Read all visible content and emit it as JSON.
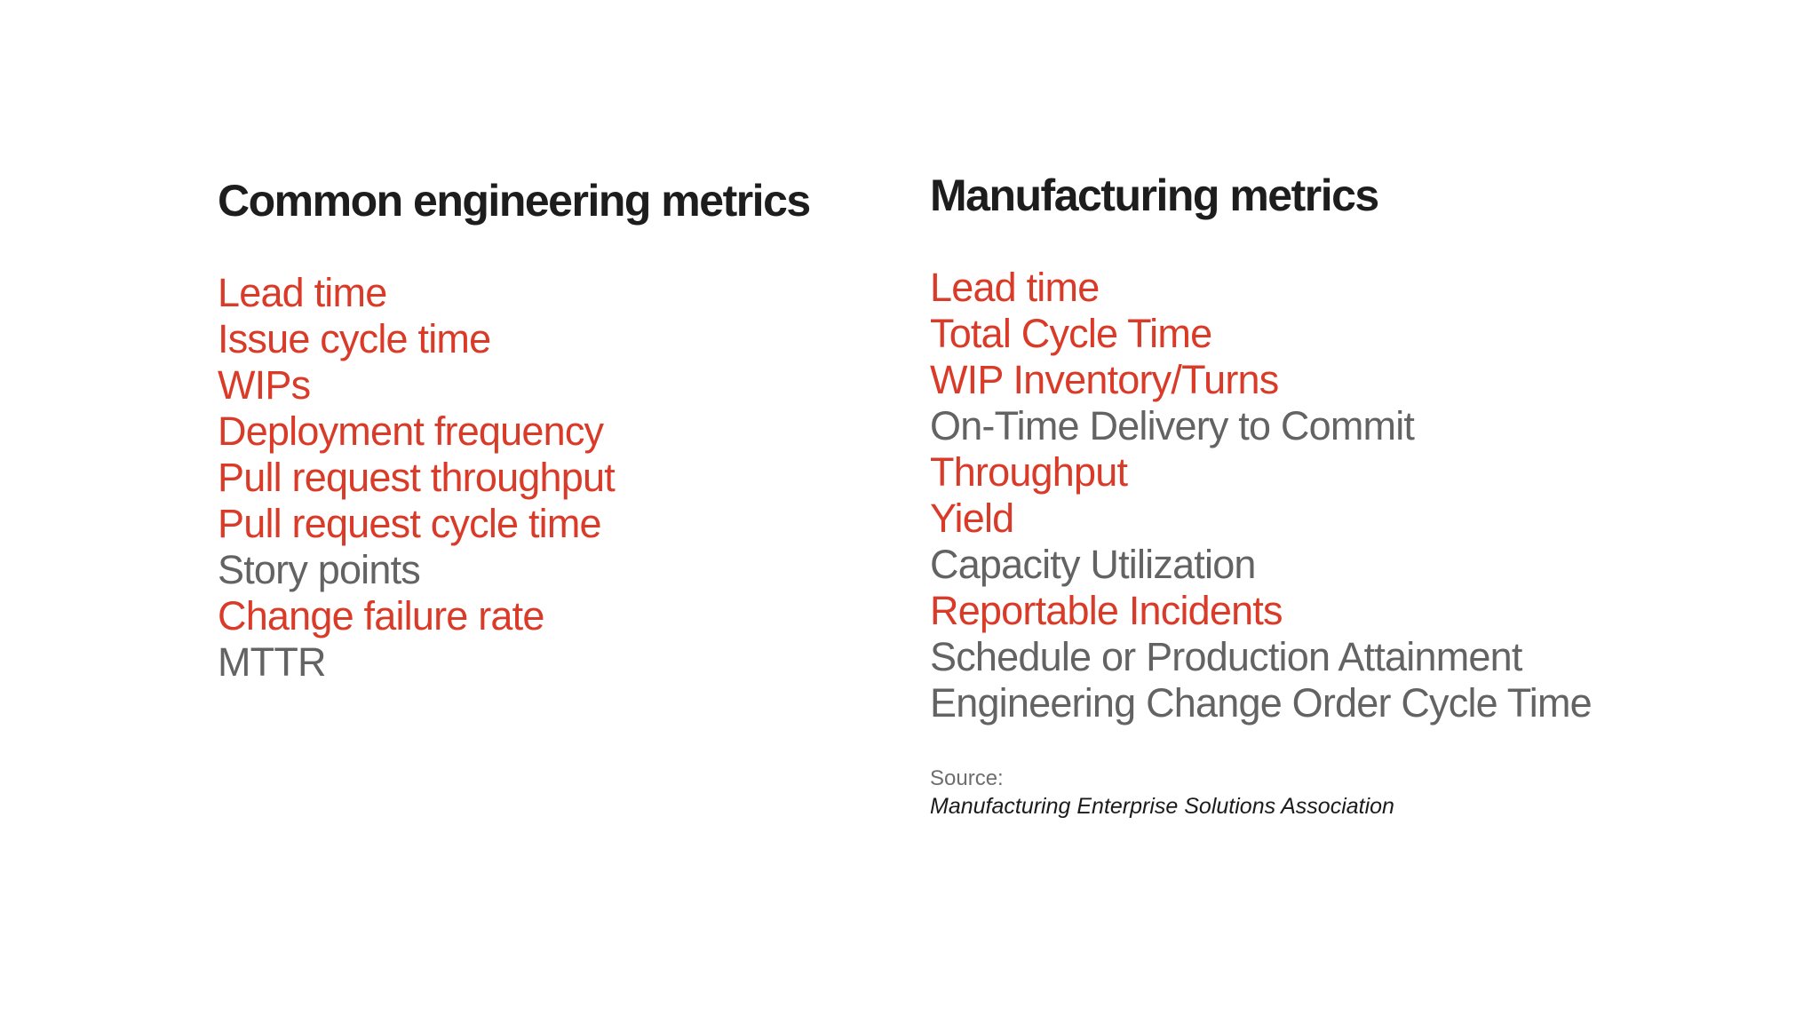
{
  "colors": {
    "highlight": "#da3a28",
    "muted": "#636363",
    "heading": "#1d1d1d",
    "source_label": "#6e6e6e",
    "background": "#ffffff"
  },
  "columns": {
    "engineering": {
      "title": "Common engineering metrics",
      "items": [
        {
          "label": "Lead time",
          "color": "highlight"
        },
        {
          "label": "Issue cycle time",
          "color": "highlight"
        },
        {
          "label": "WIPs",
          "color": "highlight"
        },
        {
          "label": "Deployment frequency",
          "color": "highlight"
        },
        {
          "label": "Pull request throughput",
          "color": "highlight"
        },
        {
          "label": "Pull request cycle time",
          "color": "highlight"
        },
        {
          "label": "Story points",
          "color": "muted"
        },
        {
          "label": "Change failure rate",
          "color": "highlight"
        },
        {
          "label": "MTTR",
          "color": "muted"
        }
      ]
    },
    "manufacturing": {
      "title": "Manufacturing metrics",
      "items": [
        {
          "label": "Lead time",
          "color": "highlight"
        },
        {
          "label": "Total Cycle Time",
          "color": "highlight"
        },
        {
          "label": "WIP Inventory/Turns",
          "color": "highlight"
        },
        {
          "label": "On-Time Delivery to Commit",
          "color": "muted"
        },
        {
          "label": "Throughput",
          "color": "highlight"
        },
        {
          "label": "Yield",
          "color": "highlight"
        },
        {
          "label": "Capacity Utilization",
          "color": "muted"
        },
        {
          "label": "Reportable Incidents",
          "color": "highlight"
        },
        {
          "label": "Schedule or Production Attainment",
          "color": "muted"
        },
        {
          "label": "Engineering Change Order Cycle Time",
          "color": "muted"
        }
      ],
      "source": {
        "label": "Source:",
        "name": "Manufacturing Enterprise Solutions Association"
      }
    }
  }
}
